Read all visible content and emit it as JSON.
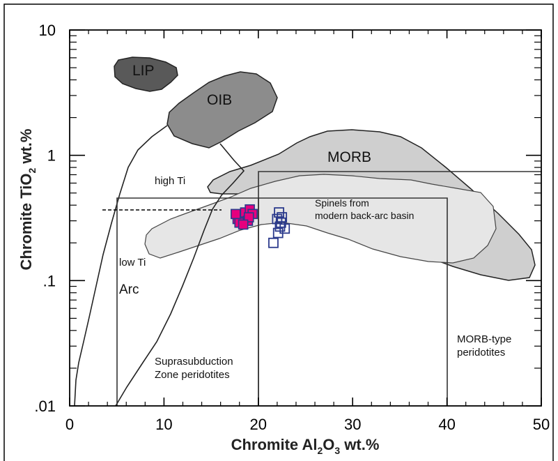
{
  "chart_data": {
    "type": "scatter",
    "x_scale": "linear",
    "y_scale": "log",
    "xlim": [
      0,
      50
    ],
    "ylim": [
      0.01,
      10
    ],
    "xlabel": {
      "pre": "Chromite Al",
      "sub": "2",
      "mid": "O",
      "sub2": "3",
      "post": " wt.%"
    },
    "ylabel": {
      "pre": "Chromite TiO",
      "sub": "2",
      "post": " wt.%"
    },
    "x_ticks": [
      "0",
      "10",
      "20",
      "30",
      "40",
      "50"
    ],
    "x_tick_values": [
      0,
      10,
      20,
      30,
      40,
      50
    ],
    "y_ticks": [
      "10",
      "1",
      ".1",
      ".01"
    ],
    "y_tick_values": [
      10,
      1,
      0.1,
      0.01
    ],
    "fields": {
      "LIP": "LIP",
      "OIB": "OIB",
      "MORB": "MORB",
      "high_ti": "high Ti",
      "low_ti": "low Ti",
      "arc": "Arc",
      "backarc_line1": "Spinels from",
      "backarc_line2": "modern back-arc basin",
      "ssz_line1": "Suprasubduction",
      "ssz_line2": "Zone peridotites",
      "morb_per_line1": "MORB-type",
      "morb_per_line2": "peridotites"
    },
    "series": [
      {
        "marker": "filled-square",
        "color": "#e6007e",
        "edge": "#2b3a8c",
        "points": [
          [
            17.8,
            0.31
          ],
          [
            18.3,
            0.33
          ],
          [
            18.6,
            0.35
          ],
          [
            19.1,
            0.37
          ],
          [
            19.4,
            0.34
          ],
          [
            18.0,
            0.29
          ],
          [
            18.9,
            0.3
          ],
          [
            17.6,
            0.34
          ],
          [
            19.0,
            0.32
          ],
          [
            18.4,
            0.28
          ]
        ]
      },
      {
        "marker": "open-square",
        "color": "#2b3a8c",
        "points": [
          [
            22.2,
            0.35
          ],
          [
            22.0,
            0.31
          ],
          [
            22.4,
            0.29
          ],
          [
            22.3,
            0.27
          ],
          [
            22.8,
            0.26
          ],
          [
            22.1,
            0.24
          ],
          [
            21.6,
            0.2
          ],
          [
            22.5,
            0.32
          ]
        ]
      }
    ],
    "colors": {
      "LIP": "#595959",
      "OIB": "#8c8c8c",
      "MORB": "#cfcfcf",
      "backarc": "#e6e6e6"
    }
  }
}
